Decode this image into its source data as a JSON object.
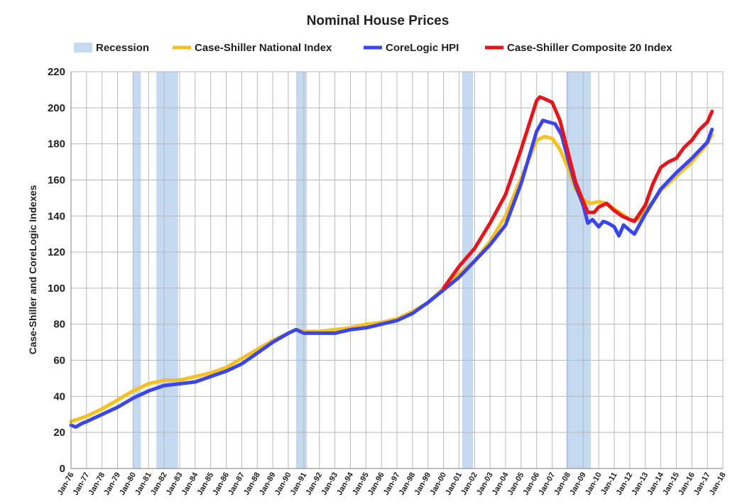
{
  "chart_data": {
    "type": "line",
    "title": "Nominal House Prices",
    "ylabel": "Case-Shiller and CoreLogic Indexes",
    "xlabel": "",
    "ylim": [
      0,
      220
    ],
    "ytick_step": 20,
    "yticks": [
      "0",
      "20",
      "40",
      "60",
      "80",
      "100",
      "120",
      "140",
      "160",
      "180",
      "200",
      "220"
    ],
    "xlim": [
      1976,
      2018
    ],
    "xticks": [
      "Jan-76",
      "Jan-77",
      "Jan-78",
      "Jan-79",
      "Jan-80",
      "Jan-81",
      "Jan-82",
      "Jan-83",
      "Jan-84",
      "Jan-85",
      "Jan-86",
      "Jan-87",
      "Jan-88",
      "Jan-89",
      "Jan-90",
      "Jan-91",
      "Jan-92",
      "Jan-93",
      "Jan-94",
      "Jan-95",
      "Jan-96",
      "Jan-97",
      "Jan-98",
      "Jan-99",
      "Jan-00",
      "Jan-01",
      "Jan-02",
      "Jan-03",
      "Jan-04",
      "Jan-05",
      "Jan-06",
      "Jan-07",
      "Jan-08",
      "Jan-09",
      "Jan-10",
      "Jan-11",
      "Jan-12",
      "Jan-13",
      "Jan-14",
      "Jan-15",
      "Jan-16",
      "Jan-17",
      "Jan-18"
    ],
    "grid": true,
    "legend_position": "top",
    "legend": [
      {
        "name": "Recession",
        "color": "#c5d9f1",
        "kind": "band"
      },
      {
        "name": "Case-Shiller National Index",
        "color": "#f5c021",
        "kind": "line"
      },
      {
        "name": "CoreLogic HPI",
        "color": "#3a45f0",
        "kind": "line"
      },
      {
        "name": "Case-Shiller Composite 20 Index",
        "color": "#e8141c",
        "kind": "line"
      }
    ],
    "recessions": [
      {
        "start": 1980.0,
        "end": 1980.5
      },
      {
        "start": 1981.5,
        "end": 1982.9
      },
      {
        "start": 1990.5,
        "end": 1991.2
      },
      {
        "start": 2001.2,
        "end": 2001.9
      },
      {
        "start": 2007.9,
        "end": 2009.5
      }
    ],
    "series": [
      {
        "name": "Case-Shiller National Index",
        "color": "#f5c021",
        "x": [
          1976,
          1977,
          1978,
          1979,
          1980,
          1981,
          1982,
          1983,
          1984,
          1985,
          1986,
          1987,
          1988,
          1989,
          1990,
          1990.5,
          1991,
          1992,
          1993,
          1994,
          1995,
          1996,
          1997,
          1998,
          1999,
          2000,
          2001,
          2002,
          2003,
          2004,
          2005,
          2006,
          2006.5,
          2007,
          2007.5,
          2008,
          2008.5,
          2009,
          2009.5,
          2010,
          2010.5,
          2011,
          2011.5,
          2012,
          2012.5,
          2013,
          2013.5,
          2014,
          2015,
          2016,
          2017,
          2017.3
        ],
        "y": [
          26,
          29,
          33,
          38,
          43,
          47,
          49,
          49,
          51,
          53,
          56,
          61,
          66,
          71,
          75,
          77,
          76,
          76,
          77,
          78,
          80,
          81,
          83,
          87,
          92,
          100,
          108,
          115,
          126,
          140,
          161,
          182,
          184,
          183,
          177,
          167,
          155,
          149,
          147,
          148,
          147,
          144,
          141,
          138,
          138,
          143,
          148,
          154,
          162,
          170,
          180,
          185
        ]
      },
      {
        "name": "CoreLogic HPI",
        "color": "#3a45f0",
        "x": [
          1976,
          1976.3,
          1976.7,
          1977,
          1978,
          1979,
          1980,
          1981,
          1982,
          1983,
          1984,
          1985,
          1986,
          1987,
          1988,
          1989,
          1990,
          1990.5,
          1991,
          1992,
          1993,
          1994,
          1995,
          1996,
          1997,
          1998,
          1999,
          2000,
          2001,
          2002,
          2003,
          2004,
          2005,
          2006,
          2006.4,
          2006.8,
          2007.2,
          2007.6,
          2008,
          2008.5,
          2009,
          2009.3,
          2009.6,
          2010,
          2010.3,
          2010.6,
          2011,
          2011.3,
          2011.6,
          2012,
          2012.3,
          2013,
          2014,
          2015,
          2016,
          2017,
          2017.3
        ],
        "y": [
          24,
          23,
          25,
          26,
          30,
          34,
          39,
          43,
          46,
          47,
          48,
          51,
          54,
          58,
          64,
          70,
          75,
          77,
          75,
          75,
          75,
          77,
          78,
          80,
          82,
          86,
          92,
          99,
          106,
          115,
          124,
          135,
          158,
          187,
          193,
          192,
          191,
          185,
          172,
          157,
          146,
          136,
          138,
          134,
          137,
          136,
          134,
          129,
          135,
          132,
          130,
          141,
          155,
          164,
          172,
          181,
          188
        ]
      },
      {
        "name": "Case-Shiller Composite 20 Index",
        "color": "#e8141c",
        "x": [
          2000,
          2001,
          2002,
          2003,
          2004,
          2005,
          2006,
          2006.2,
          2006.5,
          2007,
          2007.5,
          2008,
          2008.5,
          2009,
          2009.3,
          2009.7,
          2010,
          2010.5,
          2011,
          2011.5,
          2012,
          2012.3,
          2013,
          2013.5,
          2014,
          2014.5,
          2015,
          2015.5,
          2016,
          2016.5,
          2017,
          2017.3
        ],
        "y": [
          100,
          112,
          122,
          136,
          152,
          177,
          204,
          206,
          205,
          203,
          193,
          176,
          159,
          148,
          142,
          142,
          145,
          147,
          143,
          140,
          138,
          137,
          146,
          158,
          167,
          170,
          172,
          178,
          182,
          188,
          192,
          198
        ]
      }
    ]
  }
}
